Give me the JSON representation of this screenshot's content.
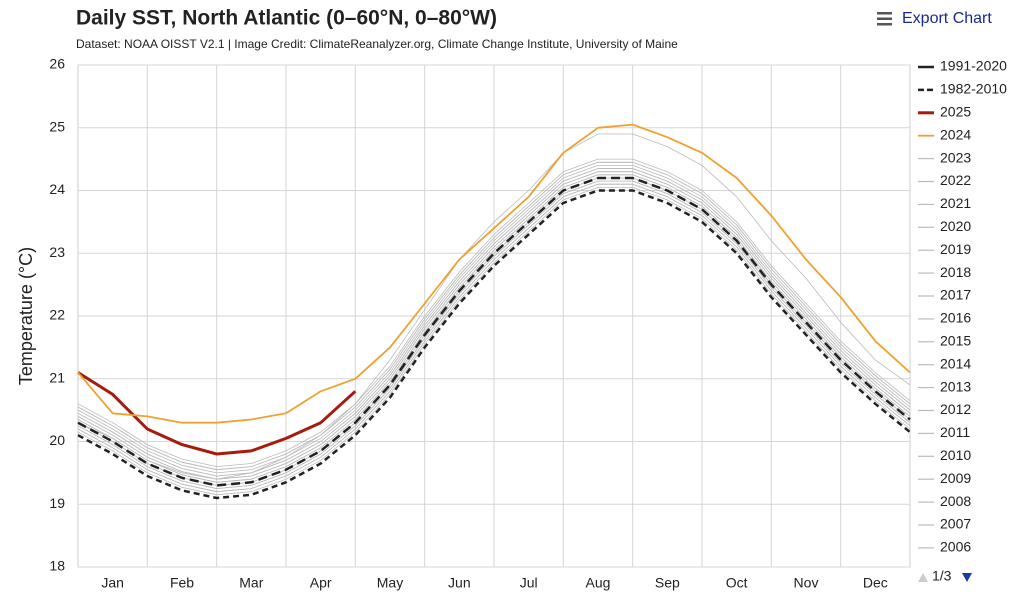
{
  "chart_data": {
    "type": "line",
    "title": "Daily SST, North Atlantic (0–60°N, 0–80°W)",
    "subtitle": "Dataset: NOAA OISST V2.1 | Image Credit: ClimateReanalyzer.org, Climate Change Institute, University of Maine",
    "y_label": "Temperature (°C)",
    "export_button": "Export Chart",
    "legend_page": "1/3",
    "categories": [
      null,
      "Jan",
      null,
      "Feb",
      null,
      "Mar",
      null,
      "Apr",
      null,
      "May",
      null,
      "Jun",
      null,
      "Jul",
      null,
      "Aug",
      null,
      "Sep",
      null,
      "Oct",
      null,
      "Nov",
      null,
      "Dec",
      null
    ],
    "ylim": [
      18,
      26
    ],
    "yticks": [
      18,
      19,
      20,
      21,
      22,
      23,
      24,
      25,
      26
    ],
    "grid": true,
    "legend": "right",
    "series": [
      {
        "name": "1991-2020",
        "color": "#222222",
        "dash": "long",
        "width": 2.5,
        "values": [
          20.3,
          20.0,
          19.65,
          19.42,
          19.3,
          19.35,
          19.55,
          19.85,
          20.3,
          20.9,
          21.7,
          22.4,
          23.0,
          23.5,
          24.0,
          24.2,
          24.2,
          24.0,
          23.7,
          23.2,
          22.5,
          21.9,
          21.3,
          20.8,
          20.35
        ]
      },
      {
        "name": "1982-2010",
        "color": "#222222",
        "dash": "short",
        "width": 2.5,
        "values": [
          20.1,
          19.8,
          19.45,
          19.22,
          19.1,
          19.15,
          19.35,
          19.65,
          20.1,
          20.7,
          21.5,
          22.2,
          22.8,
          23.3,
          23.8,
          24.0,
          24.0,
          23.8,
          23.5,
          23.0,
          22.3,
          21.7,
          21.1,
          20.6,
          20.15
        ]
      },
      {
        "name": "2025",
        "color": "#a81a0c",
        "width": 3,
        "values": [
          21.1,
          20.75,
          20.2,
          19.95,
          19.8,
          19.85,
          20.05,
          20.3,
          20.8,
          null,
          null,
          null,
          null,
          null,
          null,
          null,
          null,
          null,
          null,
          null,
          null,
          null,
          null,
          null,
          null
        ]
      },
      {
        "name": "2024",
        "color": "#f0a030",
        "width": 1.8,
        "values": [
          21.1,
          20.45,
          20.4,
          20.3,
          20.3,
          20.35,
          20.45,
          20.8,
          21.0,
          21.5,
          22.2,
          22.9,
          23.4,
          23.9,
          24.6,
          25.0,
          25.05,
          24.85,
          24.6,
          24.2,
          23.6,
          22.9,
          22.3,
          21.6,
          21.1
        ]
      },
      {
        "name": "2023",
        "color": "#bbbbbb",
        "width": 0.8,
        "values": [
          20.3,
          20.05,
          19.7,
          19.5,
          19.4,
          19.5,
          19.75,
          20.1,
          20.6,
          21.3,
          22.1,
          22.9,
          23.5,
          24.0,
          24.6,
          24.9,
          24.9,
          24.7,
          24.4,
          23.9,
          23.2,
          22.6,
          21.9,
          21.3,
          20.9
        ]
      },
      {
        "name": "2022",
        "color": "#bbbbbb",
        "width": 0.8,
        "values": [
          20.55,
          20.25,
          19.9,
          19.67,
          19.55,
          19.6,
          19.8,
          20.1,
          20.55,
          21.15,
          21.95,
          22.65,
          23.25,
          23.75,
          24.25,
          24.45,
          24.45,
          24.25,
          23.95,
          23.45,
          22.75,
          22.15,
          21.55,
          21.05,
          20.6
        ]
      },
      {
        "name": "2021",
        "color": "#bbbbbb",
        "width": 0.8,
        "values": [
          20.5,
          20.2,
          19.85,
          19.62,
          19.5,
          19.55,
          19.75,
          20.05,
          20.5,
          21.1,
          21.9,
          22.6,
          23.2,
          23.7,
          24.2,
          24.4,
          24.4,
          24.2,
          23.9,
          23.4,
          22.7,
          22.1,
          21.5,
          21.0,
          20.55
        ]
      },
      {
        "name": "2020",
        "color": "#bbbbbb",
        "width": 0.8,
        "values": [
          20.6,
          20.3,
          19.95,
          19.72,
          19.6,
          19.65,
          19.85,
          20.15,
          20.6,
          21.2,
          22.0,
          22.7,
          23.3,
          23.8,
          24.3,
          24.5,
          24.5,
          24.3,
          24.0,
          23.5,
          22.8,
          22.2,
          21.6,
          21.1,
          20.65
        ]
      },
      {
        "name": "2019",
        "color": "#bbbbbb",
        "width": 0.8,
        "values": [
          20.45,
          20.15,
          19.8,
          19.57,
          19.45,
          19.5,
          19.7,
          20.0,
          20.45,
          21.05,
          21.85,
          22.55,
          23.15,
          23.65,
          24.15,
          24.35,
          24.35,
          24.15,
          23.85,
          23.35,
          22.65,
          22.05,
          21.45,
          20.95,
          20.5
        ]
      },
      {
        "name": "2018",
        "color": "#bbbbbb",
        "width": 0.8,
        "values": [
          20.3,
          20.0,
          19.65,
          19.42,
          19.3,
          19.35,
          19.55,
          19.85,
          20.3,
          20.9,
          21.7,
          22.4,
          23.0,
          23.5,
          24.0,
          24.2,
          24.2,
          24.0,
          23.7,
          23.2,
          22.5,
          21.9,
          21.3,
          20.8,
          20.35
        ]
      },
      {
        "name": "2017",
        "color": "#bbbbbb",
        "width": 0.8,
        "values": [
          20.4,
          20.1,
          19.75,
          19.52,
          19.4,
          19.45,
          19.65,
          19.95,
          20.4,
          21.0,
          21.8,
          22.5,
          23.1,
          23.6,
          24.1,
          24.3,
          24.3,
          24.1,
          23.8,
          23.3,
          22.6,
          22.0,
          21.4,
          20.9,
          20.45
        ]
      },
      {
        "name": "2016",
        "color": "#bbbbbb",
        "width": 0.8,
        "values": [
          20.55,
          20.25,
          19.9,
          19.67,
          19.55,
          19.6,
          19.8,
          20.1,
          20.55,
          21.15,
          21.95,
          22.65,
          23.25,
          23.75,
          24.25,
          24.45,
          24.45,
          24.25,
          23.95,
          23.45,
          22.75,
          22.15,
          21.55,
          21.05,
          20.6
        ]
      },
      {
        "name": "2015",
        "color": "#bbbbbb",
        "width": 0.8,
        "values": [
          20.3,
          20.0,
          19.65,
          19.42,
          19.3,
          19.35,
          19.55,
          19.85,
          20.3,
          20.9,
          21.7,
          22.4,
          23.0,
          23.5,
          24.0,
          24.2,
          24.2,
          24.0,
          23.7,
          23.2,
          22.5,
          21.9,
          21.3,
          20.8,
          20.35
        ]
      },
      {
        "name": "2014",
        "color": "#bbbbbb",
        "width": 0.8,
        "values": [
          20.35,
          20.05,
          19.7,
          19.47,
          19.35,
          19.4,
          19.6,
          19.9,
          20.35,
          20.95,
          21.75,
          22.45,
          23.05,
          23.55,
          24.05,
          24.25,
          24.25,
          24.05,
          23.75,
          23.25,
          22.55,
          21.95,
          21.35,
          20.85,
          20.4
        ]
      },
      {
        "name": "2013",
        "color": "#bbbbbb",
        "width": 0.8,
        "values": [
          20.25,
          19.95,
          19.6,
          19.37,
          19.25,
          19.3,
          19.5,
          19.8,
          20.25,
          20.85,
          21.65,
          22.35,
          22.95,
          23.45,
          23.95,
          24.15,
          24.15,
          23.95,
          23.65,
          23.15,
          22.45,
          21.85,
          21.25,
          20.75,
          20.3
        ]
      },
      {
        "name": "2012",
        "color": "#bbbbbb",
        "width": 0.8,
        "values": [
          20.4,
          20.1,
          19.75,
          19.52,
          19.4,
          19.45,
          19.65,
          19.95,
          20.4,
          21.0,
          21.8,
          22.5,
          23.1,
          23.6,
          24.1,
          24.3,
          24.3,
          24.1,
          23.8,
          23.3,
          22.6,
          22.0,
          21.4,
          20.9,
          20.45
        ]
      },
      {
        "name": "2011",
        "color": "#bbbbbb",
        "width": 0.8,
        "values": [
          20.2,
          19.9,
          19.55,
          19.32,
          19.2,
          19.25,
          19.45,
          19.75,
          20.2,
          20.8,
          21.6,
          22.3,
          22.9,
          23.4,
          23.9,
          24.1,
          24.1,
          23.9,
          23.6,
          23.1,
          22.4,
          21.8,
          21.2,
          20.7,
          20.25
        ]
      },
      {
        "name": "2010",
        "color": "#bbbbbb",
        "width": 0.8,
        "values": [
          20.45,
          20.15,
          19.8,
          19.57,
          19.45,
          19.5,
          19.7,
          20.0,
          20.45,
          21.05,
          21.85,
          22.55,
          23.15,
          23.65,
          24.15,
          24.35,
          24.35,
          24.15,
          23.85,
          23.35,
          22.65,
          22.05,
          21.45,
          20.95,
          20.5
        ]
      },
      {
        "name": "2009",
        "color": "#bbbbbb",
        "width": 0.8,
        "values": [
          20.15,
          19.85,
          19.5,
          19.27,
          19.15,
          19.2,
          19.4,
          19.7,
          20.15,
          20.75,
          21.55,
          22.25,
          22.85,
          23.35,
          23.85,
          24.05,
          24.05,
          23.85,
          23.55,
          23.05,
          22.35,
          21.75,
          21.15,
          20.65,
          20.2
        ]
      },
      {
        "name": "2008",
        "color": "#bbbbbb",
        "width": 0.8,
        "values": [
          20.2,
          19.9,
          19.55,
          19.32,
          19.2,
          19.25,
          19.45,
          19.75,
          20.2,
          20.8,
          21.6,
          22.3,
          22.9,
          23.4,
          23.9,
          24.1,
          24.1,
          23.9,
          23.6,
          23.1,
          22.4,
          21.8,
          21.2,
          20.7,
          20.25
        ]
      },
      {
        "name": "2007",
        "color": "#bbbbbb",
        "width": 0.8,
        "values": [
          20.25,
          19.95,
          19.6,
          19.37,
          19.25,
          19.3,
          19.5,
          19.8,
          20.25,
          20.85,
          21.65,
          22.35,
          22.95,
          23.45,
          23.95,
          24.15,
          24.15,
          23.95,
          23.65,
          23.15,
          22.45,
          21.85,
          21.25,
          20.75,
          20.3
        ]
      },
      {
        "name": "2006",
        "color": "#bbbbbb",
        "width": 0.8,
        "values": [
          20.35,
          20.05,
          19.7,
          19.47,
          19.35,
          19.4,
          19.6,
          19.9,
          20.35,
          20.95,
          21.75,
          22.45,
          23.05,
          23.55,
          24.05,
          24.25,
          24.25,
          24.05,
          23.75,
          23.25,
          22.55,
          21.95,
          21.35,
          20.85,
          20.4
        ]
      }
    ]
  }
}
